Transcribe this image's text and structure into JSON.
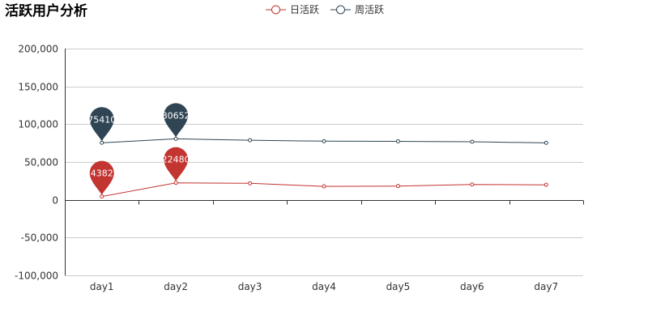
{
  "chart_data": {
    "type": "line",
    "title": "活跃用户分析",
    "categories": [
      "day1",
      "day2",
      "day3",
      "day4",
      "day5",
      "day6",
      "day7"
    ],
    "ylim": [
      -100000,
      200000
    ],
    "yticks": [
      -100000,
      -50000,
      0,
      50000,
      100000,
      150000,
      200000
    ],
    "ytick_labels": [
      "-100,000",
      "-50,000",
      "0",
      "50,000",
      "100,000",
      "150,000",
      "200,000"
    ],
    "grid": true,
    "legend_position": "top-center",
    "series": [
      {
        "name": "日活跃",
        "color": "#c23531",
        "values": [
          4382,
          22480,
          21800,
          17800,
          18200,
          20300,
          19800
        ],
        "markers": [
          {
            "index": 0,
            "label": "4382"
          },
          {
            "index": 1,
            "label": "22480"
          }
        ]
      },
      {
        "name": "周活跃",
        "color": "#2f4554",
        "values": [
          75410,
          80652,
          78800,
          77500,
          77300,
          76800,
          75300
        ],
        "markers": [
          {
            "index": 0,
            "label": "75410"
          },
          {
            "index": 1,
            "label": "80652"
          }
        ]
      }
    ]
  }
}
